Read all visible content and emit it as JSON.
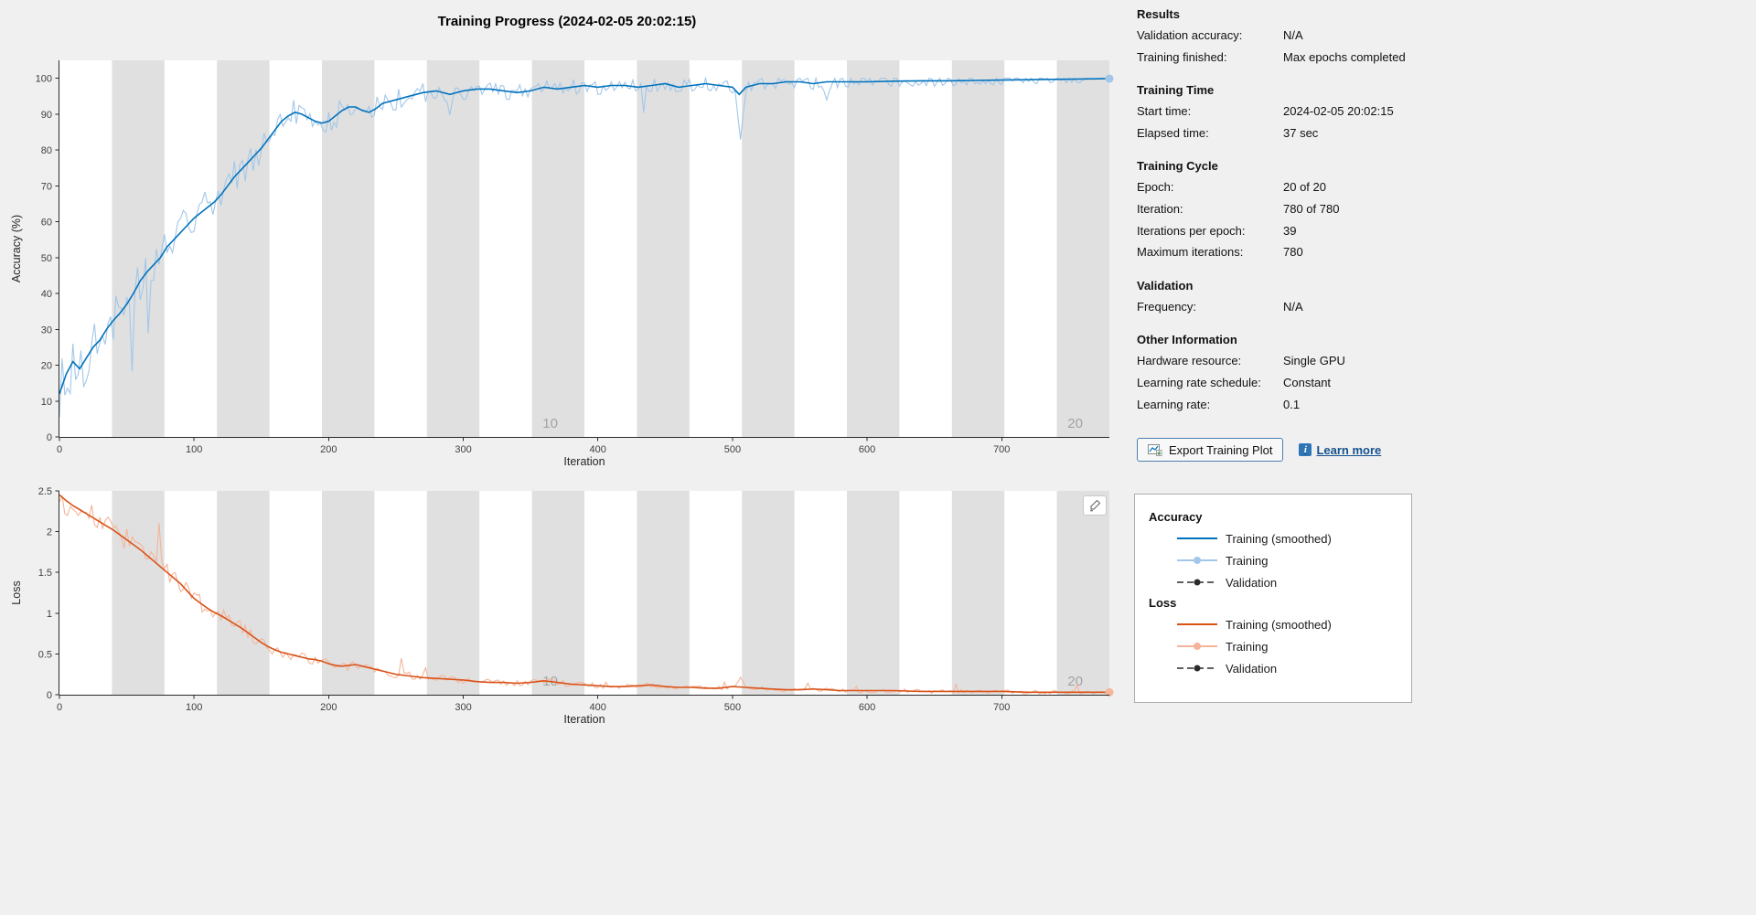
{
  "window": {
    "title": "Training Progress (2024-02-05 20:02:15)"
  },
  "colors": {
    "accuracy_line": "#0072bd",
    "accuracy_raw": "#a3c7e8",
    "loss_line": "#d95319",
    "loss_raw": "#f4b59a",
    "validation": "#2b2b2b",
    "epoch_band": "#e0e0e0",
    "background": "#f0f0f0",
    "plot_background": "#ffffff",
    "link": "#15518e"
  },
  "panel": {
    "sections": [
      {
        "title": "Results",
        "rows": [
          {
            "label": "Validation accuracy:",
            "value": "N/A"
          },
          {
            "label": "Training finished:",
            "value": "Max epochs completed"
          }
        ]
      },
      {
        "title": "Training Time",
        "rows": [
          {
            "label": "Start time:",
            "value": "2024-02-05 20:02:15"
          },
          {
            "label": "Elapsed time:",
            "value": "37 sec"
          }
        ]
      },
      {
        "title": "Training Cycle",
        "rows": [
          {
            "label": "Epoch:",
            "value": "20 of 20"
          },
          {
            "label": "Iteration:",
            "value": "780 of 780"
          },
          {
            "label": "Iterations per epoch:",
            "value": "39"
          },
          {
            "label": "Maximum iterations:",
            "value": "780"
          }
        ]
      },
      {
        "title": "Validation",
        "rows": [
          {
            "label": "Frequency:",
            "value": "N/A"
          }
        ]
      },
      {
        "title": "Other Information",
        "rows": [
          {
            "label": "Hardware resource:",
            "value": "Single GPU"
          },
          {
            "label": "Learning rate schedule:",
            "value": "Constant"
          },
          {
            "label": "Learning rate:",
            "value": "0.1"
          }
        ]
      }
    ],
    "export_button": "Export Training Plot",
    "learn_more": "Learn more"
  },
  "legend": {
    "groups": [
      {
        "title": "Accuracy",
        "entries": [
          {
            "label": "Training (smoothed)",
            "style": "smoothed",
            "color": "#0072bd"
          },
          {
            "label": "Training",
            "style": "raw",
            "color": "#a3c7e8"
          },
          {
            "label": "Validation",
            "style": "validation",
            "color": "#2b2b2b"
          }
        ]
      },
      {
        "title": "Loss",
        "entries": [
          {
            "label": "Training (smoothed)",
            "style": "smoothed",
            "color": "#d95319"
          },
          {
            "label": "Training",
            "style": "raw",
            "color": "#f4b59a"
          },
          {
            "label": "Validation",
            "style": "validation",
            "color": "#2b2b2b"
          }
        ]
      }
    ]
  },
  "chart_data": [
    {
      "type": "line",
      "title": "",
      "xlabel": "Iteration",
      "ylabel": "Accuracy (%)",
      "xlim": [
        0,
        780
      ],
      "ylim": [
        0,
        100
      ],
      "xticks": [
        0,
        100,
        200,
        300,
        400,
        500,
        600,
        700
      ],
      "yticks": [
        0,
        10,
        20,
        30,
        40,
        50,
        60,
        70,
        80,
        90,
        100
      ],
      "grid": false,
      "epochs": 20,
      "iterations_per_epoch": 39,
      "epoch_labels": [
        {
          "epoch": 10,
          "text": "10"
        },
        {
          "epoch": 20,
          "text": "20"
        }
      ],
      "series": [
        {
          "name": "Training (smoothed)",
          "color": "#0072bd",
          "points": [
            [
              0,
              12
            ],
            [
              5,
              17.5
            ],
            [
              10,
              21
            ],
            [
              15,
              19
            ],
            [
              20,
              22
            ],
            [
              25,
              25
            ],
            [
              30,
              27
            ],
            [
              35,
              30
            ],
            [
              40,
              32.5
            ],
            [
              45,
              34.5
            ],
            [
              50,
              37
            ],
            [
              55,
              40
            ],
            [
              60,
              43.5
            ],
            [
              65,
              46
            ],
            [
              70,
              48
            ],
            [
              75,
              50
            ],
            [
              80,
              53
            ],
            [
              85,
              55
            ],
            [
              90,
              57
            ],
            [
              95,
              59
            ],
            [
              100,
              61
            ],
            [
              105,
              62.5
            ],
            [
              110,
              64
            ],
            [
              115,
              65.5
            ],
            [
              120,
              67.5
            ],
            [
              125,
              70
            ],
            [
              130,
              72.5
            ],
            [
              135,
              74.5
            ],
            [
              140,
              76.5
            ],
            [
              145,
              78.5
            ],
            [
              150,
              80.5
            ],
            [
              155,
              83
            ],
            [
              160,
              85.5
            ],
            [
              165,
              88
            ],
            [
              170,
              89.5
            ],
            [
              175,
              90.5
            ],
            [
              180,
              90
            ],
            [
              185,
              89
            ],
            [
              190,
              88
            ],
            [
              195,
              87.5
            ],
            [
              200,
              88
            ],
            [
              205,
              89.5
            ],
            [
              210,
              91
            ],
            [
              215,
              92
            ],
            [
              220,
              92
            ],
            [
              225,
              91
            ],
            [
              230,
              90.5
            ],
            [
              235,
              91.5
            ],
            [
              240,
              93
            ],
            [
              245,
              93.5
            ],
            [
              250,
              94
            ],
            [
              260,
              95
            ],
            [
              270,
              96
            ],
            [
              280,
              96.5
            ],
            [
              290,
              95.5
            ],
            [
              300,
              96.5
            ],
            [
              310,
              97
            ],
            [
              320,
              97
            ],
            [
              330,
              96.5
            ],
            [
              340,
              96
            ],
            [
              350,
              96.5
            ],
            [
              360,
              97.5
            ],
            [
              370,
              97
            ],
            [
              380,
              97.5
            ],
            [
              390,
              98
            ],
            [
              400,
              97.5
            ],
            [
              410,
              98
            ],
            [
              420,
              98
            ],
            [
              430,
              97.5
            ],
            [
              440,
              98
            ],
            [
              450,
              98.5
            ],
            [
              460,
              97.5
            ],
            [
              470,
              98
            ],
            [
              480,
              98.5
            ],
            [
              490,
              98
            ],
            [
              500,
              97.5
            ],
            [
              505,
              95.5
            ],
            [
              510,
              97.5
            ],
            [
              520,
              98.5
            ],
            [
              530,
              98.5
            ],
            [
              540,
              99
            ],
            [
              550,
              99
            ],
            [
              560,
              98.5
            ],
            [
              570,
              99
            ],
            [
              580,
              99
            ],
            [
              590,
              99
            ],
            [
              600,
              99
            ],
            [
              620,
              99.2
            ],
            [
              640,
              99.3
            ],
            [
              660,
              99.3
            ],
            [
              680,
              99.4
            ],
            [
              700,
              99.5
            ],
            [
              720,
              99.6
            ],
            [
              740,
              99.7
            ],
            [
              760,
              99.8
            ],
            [
              780,
              99.9
            ]
          ]
        },
        {
          "name": "Training",
          "color": "#a3c7e8",
          "style": "raw",
          "derived_from": "Training (smoothed)"
        },
        {
          "name": "Validation",
          "color": "#2b2b2b",
          "style": "validation",
          "points": []
        }
      ]
    },
    {
      "type": "line",
      "title": "",
      "xlabel": "Iteration",
      "ylabel": "Loss",
      "xlim": [
        0,
        780
      ],
      "ylim": [
        0,
        2.5
      ],
      "xticks": [
        0,
        100,
        200,
        300,
        400,
        500,
        600,
        700
      ],
      "yticks": [
        0,
        0.5,
        1,
        1.5,
        2,
        2.5
      ],
      "grid": false,
      "epochs": 20,
      "iterations_per_epoch": 39,
      "epoch_labels": [
        {
          "epoch": 10,
          "text": "10"
        },
        {
          "epoch": 20,
          "text": "20"
        }
      ],
      "series": [
        {
          "name": "Training (smoothed)",
          "color": "#d95319",
          "points": [
            [
              0,
              2.45
            ],
            [
              5,
              2.38
            ],
            [
              10,
              2.32
            ],
            [
              15,
              2.27
            ],
            [
              20,
              2.22
            ],
            [
              25,
              2.17
            ],
            [
              30,
              2.12
            ],
            [
              35,
              2.07
            ],
            [
              40,
              2.02
            ],
            [
              45,
              1.96
            ],
            [
              50,
              1.9
            ],
            [
              55,
              1.84
            ],
            [
              60,
              1.78
            ],
            [
              65,
              1.71
            ],
            [
              70,
              1.64
            ],
            [
              75,
              1.57
            ],
            [
              80,
              1.5
            ],
            [
              85,
              1.43
            ],
            [
              90,
              1.36
            ],
            [
              95,
              1.27
            ],
            [
              100,
              1.18
            ],
            [
              105,
              1.12
            ],
            [
              110,
              1.06
            ],
            [
              115,
              1.01
            ],
            [
              120,
              0.97
            ],
            [
              125,
              0.92
            ],
            [
              130,
              0.87
            ],
            [
              135,
              0.82
            ],
            [
              140,
              0.76
            ],
            [
              145,
              0.7
            ],
            [
              150,
              0.64
            ],
            [
              155,
              0.59
            ],
            [
              160,
              0.55
            ],
            [
              165,
              0.52
            ],
            [
              170,
              0.5
            ],
            [
              175,
              0.48
            ],
            [
              180,
              0.46
            ],
            [
              185,
              0.44
            ],
            [
              190,
              0.43
            ],
            [
              195,
              0.41
            ],
            [
              200,
              0.38
            ],
            [
              205,
              0.36
            ],
            [
              210,
              0.35
            ],
            [
              215,
              0.36
            ],
            [
              220,
              0.37
            ],
            [
              225,
              0.35
            ],
            [
              230,
              0.33
            ],
            [
              235,
              0.31
            ],
            [
              240,
              0.29
            ],
            [
              245,
              0.27
            ],
            [
              250,
              0.25
            ],
            [
              260,
              0.23
            ],
            [
              270,
              0.21
            ],
            [
              280,
              0.2
            ],
            [
              290,
              0.19
            ],
            [
              300,
              0.18
            ],
            [
              310,
              0.16
            ],
            [
              320,
              0.15
            ],
            [
              330,
              0.15
            ],
            [
              340,
              0.14
            ],
            [
              350,
              0.15
            ],
            [
              360,
              0.17
            ],
            [
              370,
              0.15
            ],
            [
              380,
              0.13
            ],
            [
              390,
              0.12
            ],
            [
              400,
              0.11
            ],
            [
              410,
              0.1
            ],
            [
              420,
              0.1
            ],
            [
              430,
              0.11
            ],
            [
              440,
              0.12
            ],
            [
              450,
              0.1
            ],
            [
              460,
              0.09
            ],
            [
              470,
              0.09
            ],
            [
              480,
              0.08
            ],
            [
              490,
              0.08
            ],
            [
              500,
              0.1
            ],
            [
              510,
              0.09
            ],
            [
              520,
              0.08
            ],
            [
              530,
              0.07
            ],
            [
              540,
              0.06
            ],
            [
              550,
              0.06
            ],
            [
              560,
              0.07
            ],
            [
              570,
              0.06
            ],
            [
              580,
              0.05
            ],
            [
              600,
              0.05
            ],
            [
              620,
              0.05
            ],
            [
              640,
              0.04
            ],
            [
              660,
              0.04
            ],
            [
              680,
              0.04
            ],
            [
              700,
              0.04
            ],
            [
              720,
              0.03
            ],
            [
              740,
              0.03
            ],
            [
              760,
              0.03
            ],
            [
              780,
              0.03
            ]
          ]
        },
        {
          "name": "Training",
          "color": "#f4b59a",
          "style": "raw",
          "derived_from": "Training (smoothed)"
        },
        {
          "name": "Validation",
          "color": "#2b2b2b",
          "style": "validation",
          "points": []
        }
      ]
    }
  ]
}
